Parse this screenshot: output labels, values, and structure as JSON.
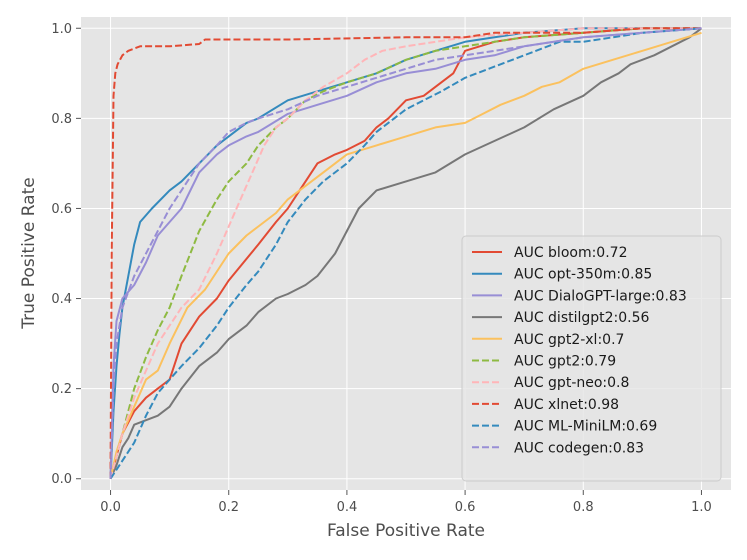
{
  "chart_data": {
    "type": "line",
    "xlabel": "False Positive Rate",
    "ylabel": "True Positive Rate",
    "xlim": [
      -0.05,
      1.05
    ],
    "ylim": [
      -0.025,
      1.025
    ],
    "xticks": [
      "0.0",
      "0.2",
      "0.4",
      "0.6",
      "0.8",
      "1.0"
    ],
    "yticks": [
      "0.0",
      "0.2",
      "0.4",
      "0.6",
      "0.8",
      "1.0"
    ],
    "grid": true,
    "legend_position": "lower-right",
    "series": [
      {
        "name": "AUC bloom:0.72",
        "color": "#E24A33",
        "dash": "solid",
        "points": [
          [
            0,
            0
          ],
          [
            0.01,
            0.05
          ],
          [
            0.02,
            0.1
          ],
          [
            0.04,
            0.15
          ],
          [
            0.06,
            0.18
          ],
          [
            0.08,
            0.2
          ],
          [
            0.1,
            0.22
          ],
          [
            0.12,
            0.3
          ],
          [
            0.15,
            0.36
          ],
          [
            0.18,
            0.4
          ],
          [
            0.2,
            0.44
          ],
          [
            0.25,
            0.52
          ],
          [
            0.28,
            0.57
          ],
          [
            0.3,
            0.6
          ],
          [
            0.32,
            0.64
          ],
          [
            0.35,
            0.7
          ],
          [
            0.38,
            0.72
          ],
          [
            0.4,
            0.73
          ],
          [
            0.43,
            0.75
          ],
          [
            0.45,
            0.78
          ],
          [
            0.47,
            0.8
          ],
          [
            0.5,
            0.84
          ],
          [
            0.53,
            0.85
          ],
          [
            0.55,
            0.87
          ],
          [
            0.58,
            0.9
          ],
          [
            0.6,
            0.95
          ],
          [
            0.65,
            0.97
          ],
          [
            0.7,
            0.98
          ],
          [
            0.8,
            0.99
          ],
          [
            0.9,
            1.0
          ],
          [
            1.0,
            1.0
          ]
        ]
      },
      {
        "name": "AUC opt-350m:0.85",
        "color": "#348ABD",
        "dash": "solid",
        "points": [
          [
            0,
            0
          ],
          [
            0.005,
            0.15
          ],
          [
            0.01,
            0.25
          ],
          [
            0.015,
            0.32
          ],
          [
            0.02,
            0.38
          ],
          [
            0.03,
            0.45
          ],
          [
            0.04,
            0.52
          ],
          [
            0.05,
            0.57
          ],
          [
            0.07,
            0.6
          ],
          [
            0.1,
            0.64
          ],
          [
            0.12,
            0.66
          ],
          [
            0.15,
            0.7
          ],
          [
            0.18,
            0.74
          ],
          [
            0.2,
            0.76
          ],
          [
            0.23,
            0.79
          ],
          [
            0.25,
            0.8
          ],
          [
            0.3,
            0.84
          ],
          [
            0.35,
            0.86
          ],
          [
            0.4,
            0.88
          ],
          [
            0.45,
            0.9
          ],
          [
            0.5,
            0.93
          ],
          [
            0.55,
            0.95
          ],
          [
            0.6,
            0.97
          ],
          [
            0.65,
            0.98
          ],
          [
            0.7,
            0.99
          ],
          [
            0.8,
            1.0
          ],
          [
            1.0,
            1.0
          ]
        ]
      },
      {
        "name": "AUC DialoGPT-large:0.83",
        "color": "#988ED5",
        "dash": "solid",
        "points": [
          [
            0,
            0
          ],
          [
            0.005,
            0.25
          ],
          [
            0.01,
            0.35
          ],
          [
            0.02,
            0.4
          ],
          [
            0.04,
            0.43
          ],
          [
            0.06,
            0.48
          ],
          [
            0.08,
            0.54
          ],
          [
            0.1,
            0.57
          ],
          [
            0.12,
            0.6
          ],
          [
            0.15,
            0.68
          ],
          [
            0.18,
            0.72
          ],
          [
            0.2,
            0.74
          ],
          [
            0.23,
            0.76
          ],
          [
            0.25,
            0.77
          ],
          [
            0.3,
            0.81
          ],
          [
            0.35,
            0.83
          ],
          [
            0.4,
            0.85
          ],
          [
            0.45,
            0.88
          ],
          [
            0.5,
            0.9
          ],
          [
            0.55,
            0.91
          ],
          [
            0.6,
            0.93
          ],
          [
            0.65,
            0.94
          ],
          [
            0.7,
            0.96
          ],
          [
            0.8,
            0.98
          ],
          [
            0.9,
            0.99
          ],
          [
            1.0,
            1.0
          ]
        ]
      },
      {
        "name": "AUC distilgpt2:0.56",
        "color": "#777777",
        "dash": "solid",
        "points": [
          [
            0,
            0
          ],
          [
            0.01,
            0.03
          ],
          [
            0.02,
            0.07
          ],
          [
            0.03,
            0.09
          ],
          [
            0.04,
            0.12
          ],
          [
            0.06,
            0.13
          ],
          [
            0.08,
            0.14
          ],
          [
            0.1,
            0.16
          ],
          [
            0.12,
            0.2
          ],
          [
            0.15,
            0.25
          ],
          [
            0.18,
            0.28
          ],
          [
            0.2,
            0.31
          ],
          [
            0.23,
            0.34
          ],
          [
            0.25,
            0.37
          ],
          [
            0.28,
            0.4
          ],
          [
            0.3,
            0.41
          ],
          [
            0.33,
            0.43
          ],
          [
            0.35,
            0.45
          ],
          [
            0.38,
            0.5
          ],
          [
            0.4,
            0.55
          ],
          [
            0.42,
            0.6
          ],
          [
            0.45,
            0.64
          ],
          [
            0.5,
            0.66
          ],
          [
            0.55,
            0.68
          ],
          [
            0.6,
            0.72
          ],
          [
            0.65,
            0.75
          ],
          [
            0.7,
            0.78
          ],
          [
            0.75,
            0.82
          ],
          [
            0.8,
            0.85
          ],
          [
            0.83,
            0.88
          ],
          [
            0.86,
            0.9
          ],
          [
            0.88,
            0.92
          ],
          [
            0.92,
            0.94
          ],
          [
            0.95,
            0.96
          ],
          [
            0.98,
            0.98
          ],
          [
            1.0,
            1.0
          ]
        ]
      },
      {
        "name": "AUC gpt2-xl:0.7",
        "color": "#FBC15E",
        "dash": "solid",
        "points": [
          [
            0,
            0
          ],
          [
            0.01,
            0.06
          ],
          [
            0.02,
            0.1
          ],
          [
            0.04,
            0.16
          ],
          [
            0.06,
            0.22
          ],
          [
            0.08,
            0.24
          ],
          [
            0.1,
            0.3
          ],
          [
            0.13,
            0.38
          ],
          [
            0.16,
            0.42
          ],
          [
            0.18,
            0.46
          ],
          [
            0.2,
            0.5
          ],
          [
            0.23,
            0.54
          ],
          [
            0.25,
            0.56
          ],
          [
            0.28,
            0.59
          ],
          [
            0.3,
            0.62
          ],
          [
            0.33,
            0.65
          ],
          [
            0.36,
            0.68
          ],
          [
            0.38,
            0.7
          ],
          [
            0.4,
            0.72
          ],
          [
            0.45,
            0.74
          ],
          [
            0.5,
            0.76
          ],
          [
            0.55,
            0.78
          ],
          [
            0.6,
            0.79
          ],
          [
            0.63,
            0.81
          ],
          [
            0.66,
            0.83
          ],
          [
            0.7,
            0.85
          ],
          [
            0.73,
            0.87
          ],
          [
            0.76,
            0.88
          ],
          [
            0.8,
            0.91
          ],
          [
            0.85,
            0.93
          ],
          [
            0.9,
            0.95
          ],
          [
            0.95,
            0.97
          ],
          [
            1.0,
            0.99
          ]
        ]
      },
      {
        "name": "AUC gpt2:0.79",
        "color": "#8EBA42",
        "dash": "dashed",
        "points": [
          [
            0,
            0
          ],
          [
            0.01,
            0.05
          ],
          [
            0.02,
            0.1
          ],
          [
            0.04,
            0.2
          ],
          [
            0.06,
            0.27
          ],
          [
            0.08,
            0.33
          ],
          [
            0.1,
            0.38
          ],
          [
            0.12,
            0.45
          ],
          [
            0.15,
            0.55
          ],
          [
            0.18,
            0.62
          ],
          [
            0.2,
            0.66
          ],
          [
            0.23,
            0.7
          ],
          [
            0.25,
            0.74
          ],
          [
            0.28,
            0.78
          ],
          [
            0.3,
            0.8
          ],
          [
            0.33,
            0.84
          ],
          [
            0.36,
            0.86
          ],
          [
            0.4,
            0.88
          ],
          [
            0.45,
            0.9
          ],
          [
            0.5,
            0.93
          ],
          [
            0.55,
            0.95
          ],
          [
            0.6,
            0.96
          ],
          [
            0.65,
            0.97
          ],
          [
            0.7,
            0.98
          ],
          [
            0.8,
            0.99
          ],
          [
            0.9,
            1.0
          ],
          [
            1.0,
            1.0
          ]
        ]
      },
      {
        "name": "AUC gpt-neo:0.8",
        "color": "#FFB5B8",
        "dash": "dashed",
        "points": [
          [
            0,
            0
          ],
          [
            0.01,
            0.05
          ],
          [
            0.02,
            0.1
          ],
          [
            0.04,
            0.18
          ],
          [
            0.06,
            0.24
          ],
          [
            0.08,
            0.3
          ],
          [
            0.1,
            0.34
          ],
          [
            0.12,
            0.38
          ],
          [
            0.15,
            0.42
          ],
          [
            0.18,
            0.5
          ],
          [
            0.2,
            0.56
          ],
          [
            0.22,
            0.62
          ],
          [
            0.24,
            0.68
          ],
          [
            0.26,
            0.74
          ],
          [
            0.28,
            0.78
          ],
          [
            0.3,
            0.8
          ],
          [
            0.33,
            0.84
          ],
          [
            0.36,
            0.87
          ],
          [
            0.4,
            0.9
          ],
          [
            0.43,
            0.93
          ],
          [
            0.46,
            0.95
          ],
          [
            0.5,
            0.96
          ],
          [
            0.55,
            0.97
          ],
          [
            0.6,
            0.98
          ],
          [
            0.7,
            0.99
          ],
          [
            0.8,
            1.0
          ],
          [
            1.0,
            1.0
          ]
        ]
      },
      {
        "name": "AUC xlnet:0.98",
        "color": "#E24A33",
        "dash": "dashed",
        "points": [
          [
            0,
            0
          ],
          [
            0.002,
            0.5
          ],
          [
            0.005,
            0.85
          ],
          [
            0.008,
            0.9
          ],
          [
            0.012,
            0.92
          ],
          [
            0.02,
            0.94
          ],
          [
            0.03,
            0.95
          ],
          [
            0.05,
            0.96
          ],
          [
            0.1,
            0.96
          ],
          [
            0.15,
            0.965
          ],
          [
            0.16,
            0.975
          ],
          [
            0.3,
            0.975
          ],
          [
            0.5,
            0.98
          ],
          [
            0.6,
            0.98
          ],
          [
            0.65,
            0.99
          ],
          [
            0.8,
            0.99
          ],
          [
            0.9,
            1.0
          ],
          [
            1.0,
            1.0
          ]
        ]
      },
      {
        "name": "AUC ML-MiniLM:0.69",
        "color": "#348ABD",
        "dash": "dashed",
        "points": [
          [
            0,
            0
          ],
          [
            0.01,
            0.02
          ],
          [
            0.02,
            0.04
          ],
          [
            0.04,
            0.08
          ],
          [
            0.06,
            0.14
          ],
          [
            0.08,
            0.19
          ],
          [
            0.1,
            0.22
          ],
          [
            0.12,
            0.25
          ],
          [
            0.15,
            0.29
          ],
          [
            0.18,
            0.34
          ],
          [
            0.2,
            0.38
          ],
          [
            0.23,
            0.43
          ],
          [
            0.25,
            0.46
          ],
          [
            0.28,
            0.52
          ],
          [
            0.3,
            0.57
          ],
          [
            0.33,
            0.62
          ],
          [
            0.36,
            0.66
          ],
          [
            0.4,
            0.7
          ],
          [
            0.43,
            0.74
          ],
          [
            0.45,
            0.77
          ],
          [
            0.48,
            0.8
          ],
          [
            0.5,
            0.82
          ],
          [
            0.53,
            0.84
          ],
          [
            0.56,
            0.86
          ],
          [
            0.6,
            0.89
          ],
          [
            0.64,
            0.91
          ],
          [
            0.68,
            0.93
          ],
          [
            0.72,
            0.95
          ],
          [
            0.76,
            0.97
          ],
          [
            0.8,
            0.97
          ],
          [
            0.85,
            0.98
          ],
          [
            0.9,
            0.99
          ],
          [
            1.0,
            1.0
          ]
        ]
      },
      {
        "name": "AUC codegen:0.83",
        "color": "#988ED5",
        "dash": "dashed",
        "points": [
          [
            0,
            0
          ],
          [
            0.005,
            0.2
          ],
          [
            0.01,
            0.3
          ],
          [
            0.02,
            0.38
          ],
          [
            0.04,
            0.45
          ],
          [
            0.06,
            0.5
          ],
          [
            0.08,
            0.55
          ],
          [
            0.1,
            0.6
          ],
          [
            0.12,
            0.64
          ],
          [
            0.15,
            0.7
          ],
          [
            0.18,
            0.74
          ],
          [
            0.2,
            0.77
          ],
          [
            0.23,
            0.79
          ],
          [
            0.25,
            0.8
          ],
          [
            0.3,
            0.82
          ],
          [
            0.35,
            0.85
          ],
          [
            0.4,
            0.87
          ],
          [
            0.45,
            0.89
          ],
          [
            0.5,
            0.91
          ],
          [
            0.55,
            0.93
          ],
          [
            0.6,
            0.94
          ],
          [
            0.65,
            0.95
          ],
          [
            0.7,
            0.96
          ],
          [
            0.8,
            0.98
          ],
          [
            0.9,
            0.99
          ],
          [
            1.0,
            1.0
          ]
        ]
      }
    ]
  }
}
